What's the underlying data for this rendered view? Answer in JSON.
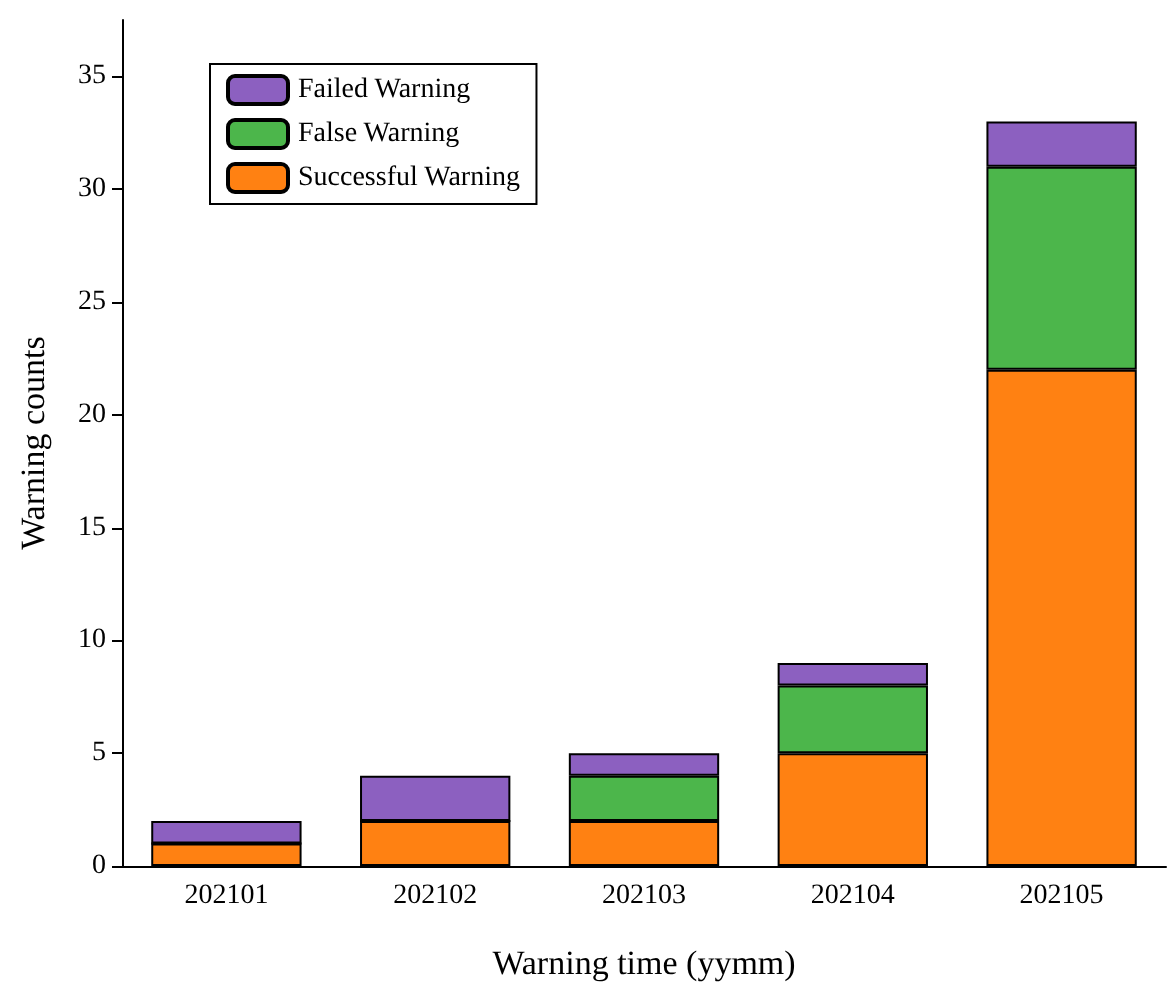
{
  "chart_data": {
    "type": "bar",
    "xlabel": "Warning time (yymm)",
    "ylabel": "Warning counts",
    "categories": [
      "202101",
      "202102",
      "202103",
      "202104",
      "202105"
    ],
    "stacked": true,
    "series": [
      {
        "name": "Successful Warning",
        "color": "#ff8112",
        "values": [
          1,
          2,
          2,
          5,
          22
        ]
      },
      {
        "name": "False Warning",
        "color": "#4cb64b",
        "values": [
          0,
          0,
          2,
          3,
          9
        ]
      },
      {
        "name": "Failed Warning",
        "color": "#8c60c0",
        "values": [
          1,
          2,
          1,
          1,
          2
        ]
      }
    ],
    "ylim": [
      0,
      37.5
    ],
    "yticks": [
      0,
      5,
      10,
      15,
      20,
      25,
      30,
      35
    ],
    "grid": false,
    "legend": "top left"
  }
}
